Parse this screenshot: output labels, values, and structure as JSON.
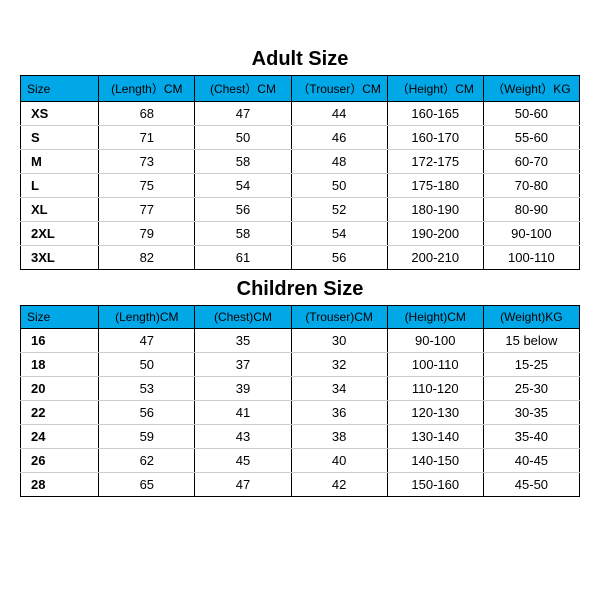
{
  "adult": {
    "title": "Adult Size",
    "columns": [
      "Size",
      "(Length）CM",
      "(Chest）CM",
      "（Trouser）CM",
      "（Height）CM",
      "（Weight）KG"
    ],
    "rows": [
      [
        "XS",
        "68",
        "47",
        "44",
        "160-165",
        "50-60"
      ],
      [
        "S",
        "71",
        "50",
        "46",
        "160-170",
        "55-60"
      ],
      [
        "M",
        "73",
        "58",
        "48",
        "172-175",
        "60-70"
      ],
      [
        "L",
        "75",
        "54",
        "50",
        "175-180",
        "70-80"
      ],
      [
        "XL",
        "77",
        "56",
        "52",
        "180-190",
        "80-90"
      ],
      [
        "2XL",
        "79",
        "58",
        "54",
        "190-200",
        "90-100"
      ],
      [
        "3XL",
        "82",
        "61",
        "56",
        "200-210",
        "100-110"
      ]
    ]
  },
  "children": {
    "title": "Children Size",
    "columns": [
      "Size",
      "(Length)CM",
      "(Chest)CM",
      "(Trouser)CM",
      "(Height)CM",
      "(Weight)KG"
    ],
    "rows": [
      [
        "16",
        "47",
        "35",
        "30",
        "90-100",
        "15 below"
      ],
      [
        "18",
        "50",
        "37",
        "32",
        "100-110",
        "15-25"
      ],
      [
        "20",
        "53",
        "39",
        "34",
        "110-120",
        "25-30"
      ],
      [
        "22",
        "56",
        "41",
        "36",
        "120-130",
        "30-35"
      ],
      [
        "24",
        "59",
        "43",
        "38",
        "130-140",
        "35-40"
      ],
      [
        "26",
        "62",
        "45",
        "40",
        "140-150",
        "40-45"
      ],
      [
        "28",
        "65",
        "47",
        "42",
        "150-160",
        "45-50"
      ]
    ]
  },
  "style": {
    "header_bg": "#00a8e8",
    "border_color": "#000000",
    "row_border": "#cccccc",
    "bg": "#ffffff",
    "title_fontsize": 20,
    "cell_fontsize": 13,
    "header_fontsize": 12
  }
}
